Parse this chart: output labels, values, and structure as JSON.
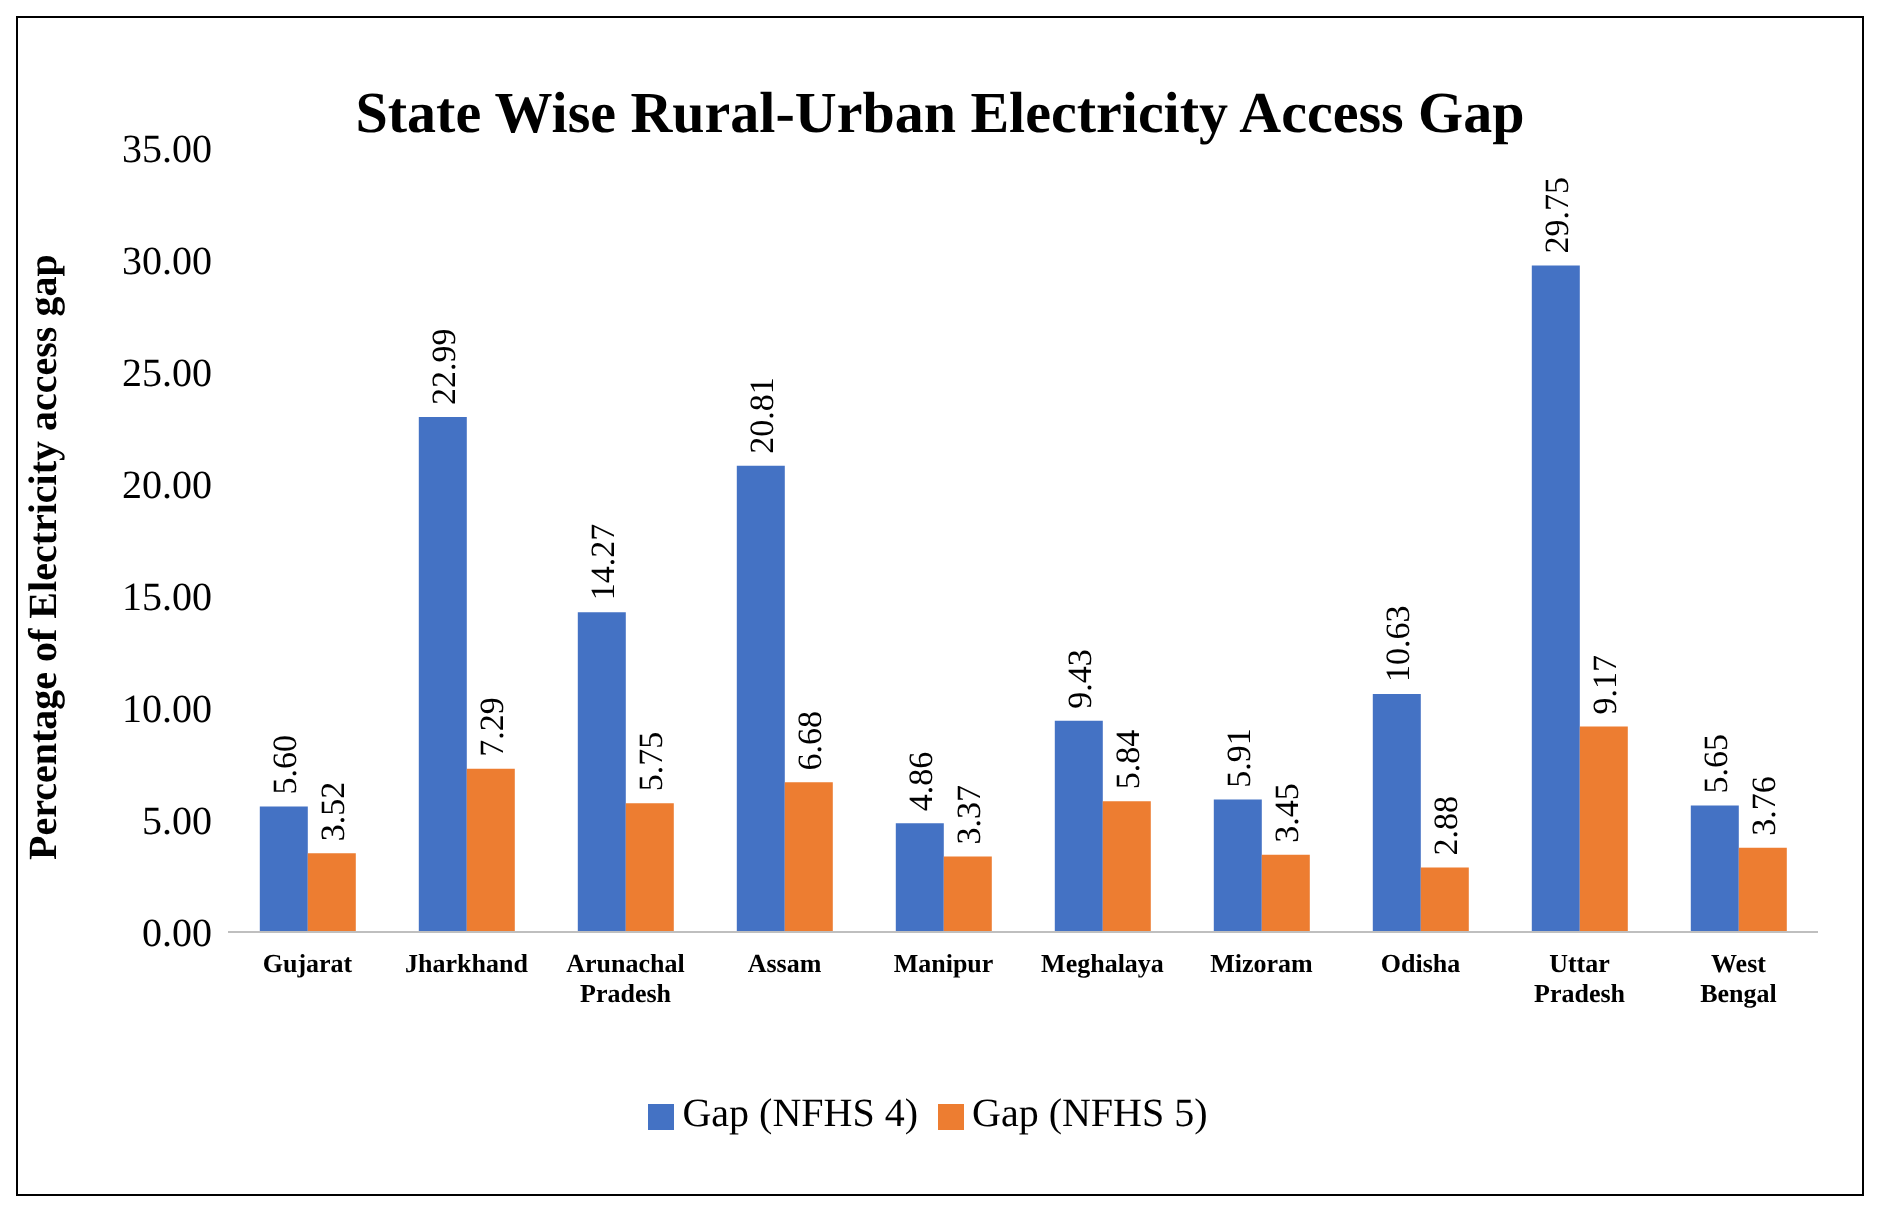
{
  "chart_data": {
    "type": "bar",
    "title": "State Wise Rural-Urban Electricity Access Gap",
    "ylabel": "Percentage of Electricity access gap",
    "categories": [
      "Gujarat",
      "Jharkhand",
      "Arunachal Pradesh",
      "Assam",
      "Manipur",
      "Meghalaya",
      "Mizoram",
      "Odisha",
      "Uttar Pradesh",
      "West Bengal"
    ],
    "series": [
      {
        "name": "Gap (NFHS 4)",
        "color": "#4472c4",
        "values": [
          5.6,
          22.99,
          14.27,
          20.81,
          4.86,
          9.43,
          5.91,
          10.63,
          29.75,
          5.65
        ],
        "value_labels": [
          "5.60",
          "22.99",
          "14.27",
          "20.81",
          "4.86",
          "9.43",
          "5.91",
          "10.63",
          "29.75",
          "5.65"
        ]
      },
      {
        "name": "Gap (NFHS 5)",
        "color": "#ed7d31",
        "values": [
          3.52,
          7.29,
          5.75,
          6.68,
          3.37,
          5.84,
          3.45,
          2.88,
          9.17,
          3.76
        ],
        "value_labels": [
          "3.52",
          "7.29",
          "5.75",
          "6.68",
          "3.37",
          "5.84",
          "3.45",
          "2.88",
          "9.17",
          "3.76"
        ]
      }
    ],
    "ylim": [
      0,
      35
    ],
    "yticks": [
      {
        "value": 0,
        "label": "0.00"
      },
      {
        "value": 5,
        "label": "5.00"
      },
      {
        "value": 10,
        "label": "10.00"
      },
      {
        "value": 15,
        "label": "15.00"
      },
      {
        "value": 20,
        "label": "20.00"
      },
      {
        "value": 25,
        "label": "25.00"
      },
      {
        "value": 30,
        "label": "30.00"
      },
      {
        "value": 35,
        "label": "35.00"
      }
    ],
    "grid": false,
    "legend": "bottom"
  }
}
